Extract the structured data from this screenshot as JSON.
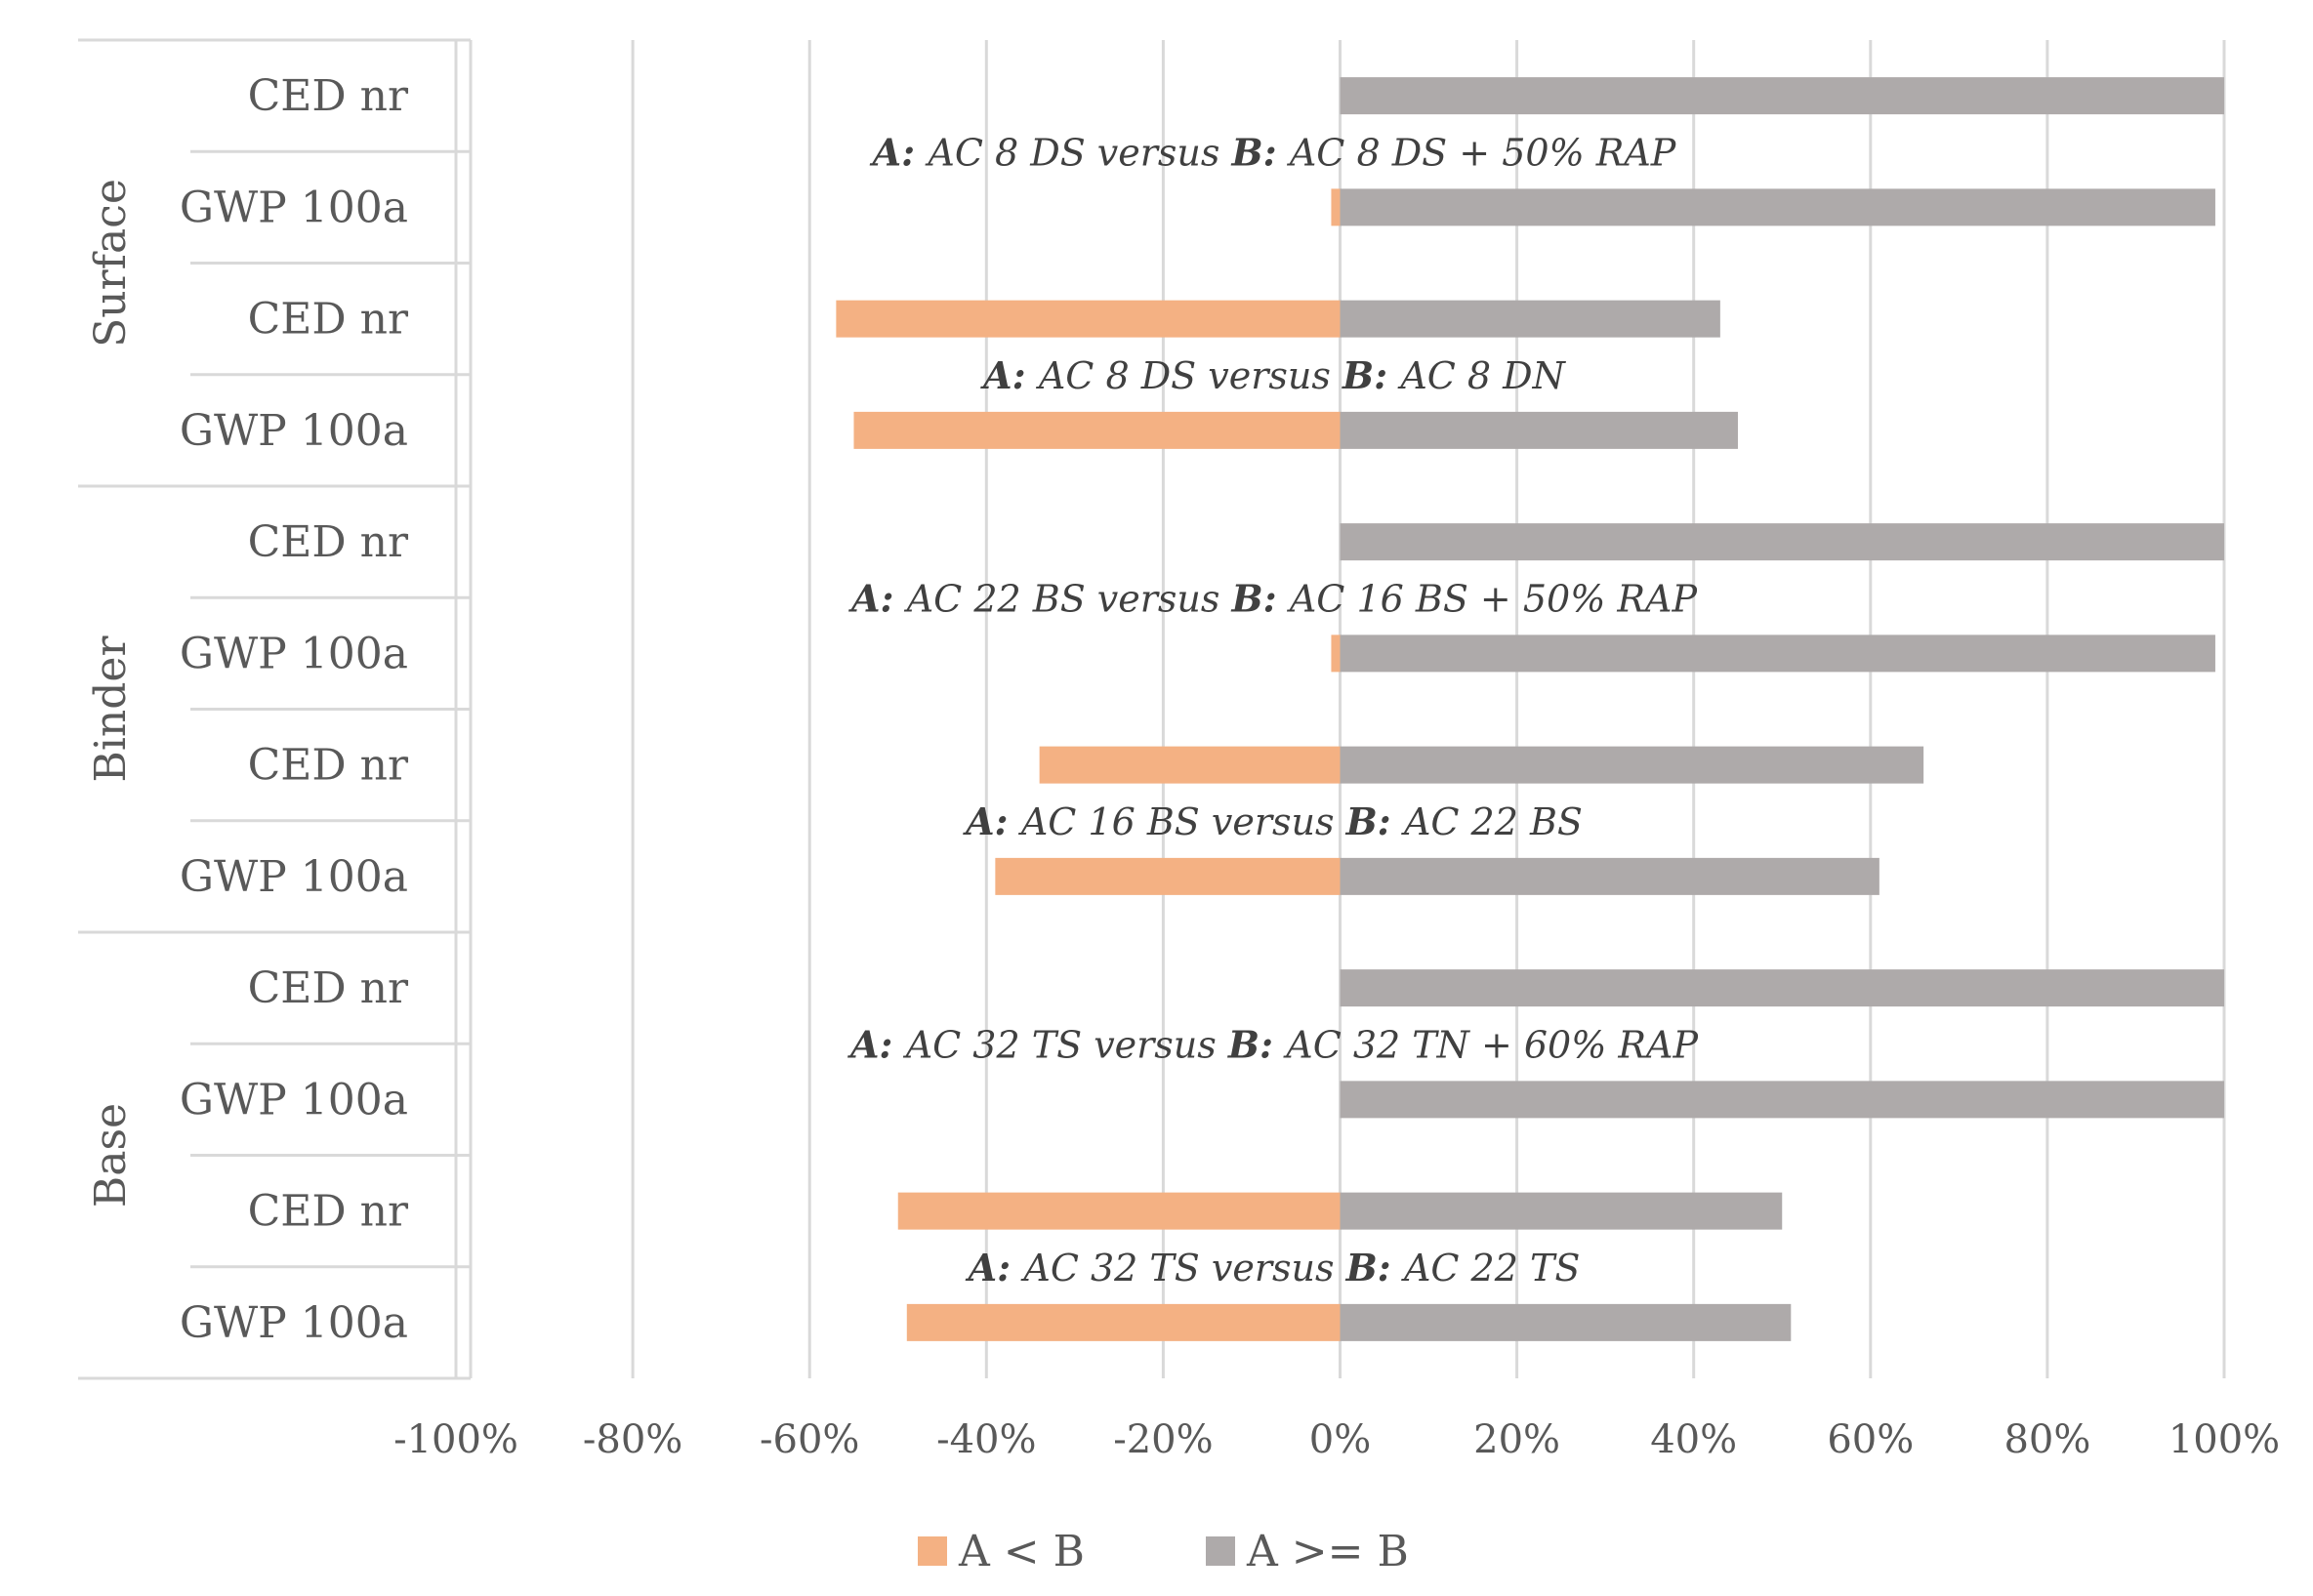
{
  "chart_data": {
    "type": "bar",
    "orientation": "horizontal",
    "x_axis": {
      "min": -100,
      "max": 100,
      "step": 20,
      "tick_labels": [
        "-100%",
        "-80%",
        "-60%",
        "-40%",
        "-20%",
        "0%",
        "20%",
        "40%",
        "60%",
        "80%",
        "100%"
      ],
      "grid": true
    },
    "groups": [
      {
        "name": "Surface",
        "rows": [
          0,
          1,
          2,
          3
        ]
      },
      {
        "name": "Binder",
        "rows": [
          4,
          5,
          6,
          7
        ]
      },
      {
        "name": "Base",
        "rows": [
          8,
          9,
          10,
          11
        ]
      }
    ],
    "categories": [
      "CED nr",
      "GWP 100a",
      "CED nr",
      "GWP 100a",
      "CED nr",
      "GWP 100a",
      "CED nr",
      "GWP 100a",
      "CED nr",
      "GWP 100a",
      "CED nr",
      "GWP 100a"
    ],
    "series": [
      {
        "name": "A < B",
        "color": "#F4B183",
        "values": [
          0,
          -1,
          -57,
          -55,
          0,
          -1,
          -34,
          -39,
          0,
          0,
          -50,
          -49
        ]
      },
      {
        "name": "A >= B",
        "color": "#AEAAAA",
        "values": [
          100,
          99,
          43,
          45,
          100,
          99,
          66,
          61,
          100,
          100,
          50,
          51
        ]
      }
    ],
    "annotations": [
      {
        "between_rows": [
          0,
          1
        ],
        "a": "AC 8 DS",
        "b": "AC 8 DS + 50% RAP"
      },
      {
        "between_rows": [
          2,
          3
        ],
        "a": "AC 8 DS",
        "b": "AC 8 DN"
      },
      {
        "between_rows": [
          4,
          5
        ],
        "a": "AC 22 BS",
        "b": "AC 16 BS + 50% RAP"
      },
      {
        "between_rows": [
          6,
          7
        ],
        "a": "AC 16 BS",
        "b": "AC 22 BS"
      },
      {
        "between_rows": [
          8,
          9
        ],
        "a": "AC 32 TS",
        "b": "AC 32 TN + 60% RAP"
      },
      {
        "between_rows": [
          10,
          11
        ],
        "a": "AC 32 TS",
        "b": "AC 22 TS"
      }
    ],
    "annotation_words": {
      "a_prefix": "A:",
      "versus": "versus",
      "b_prefix": "B:"
    },
    "legend": {
      "position": "bottom"
    }
  }
}
